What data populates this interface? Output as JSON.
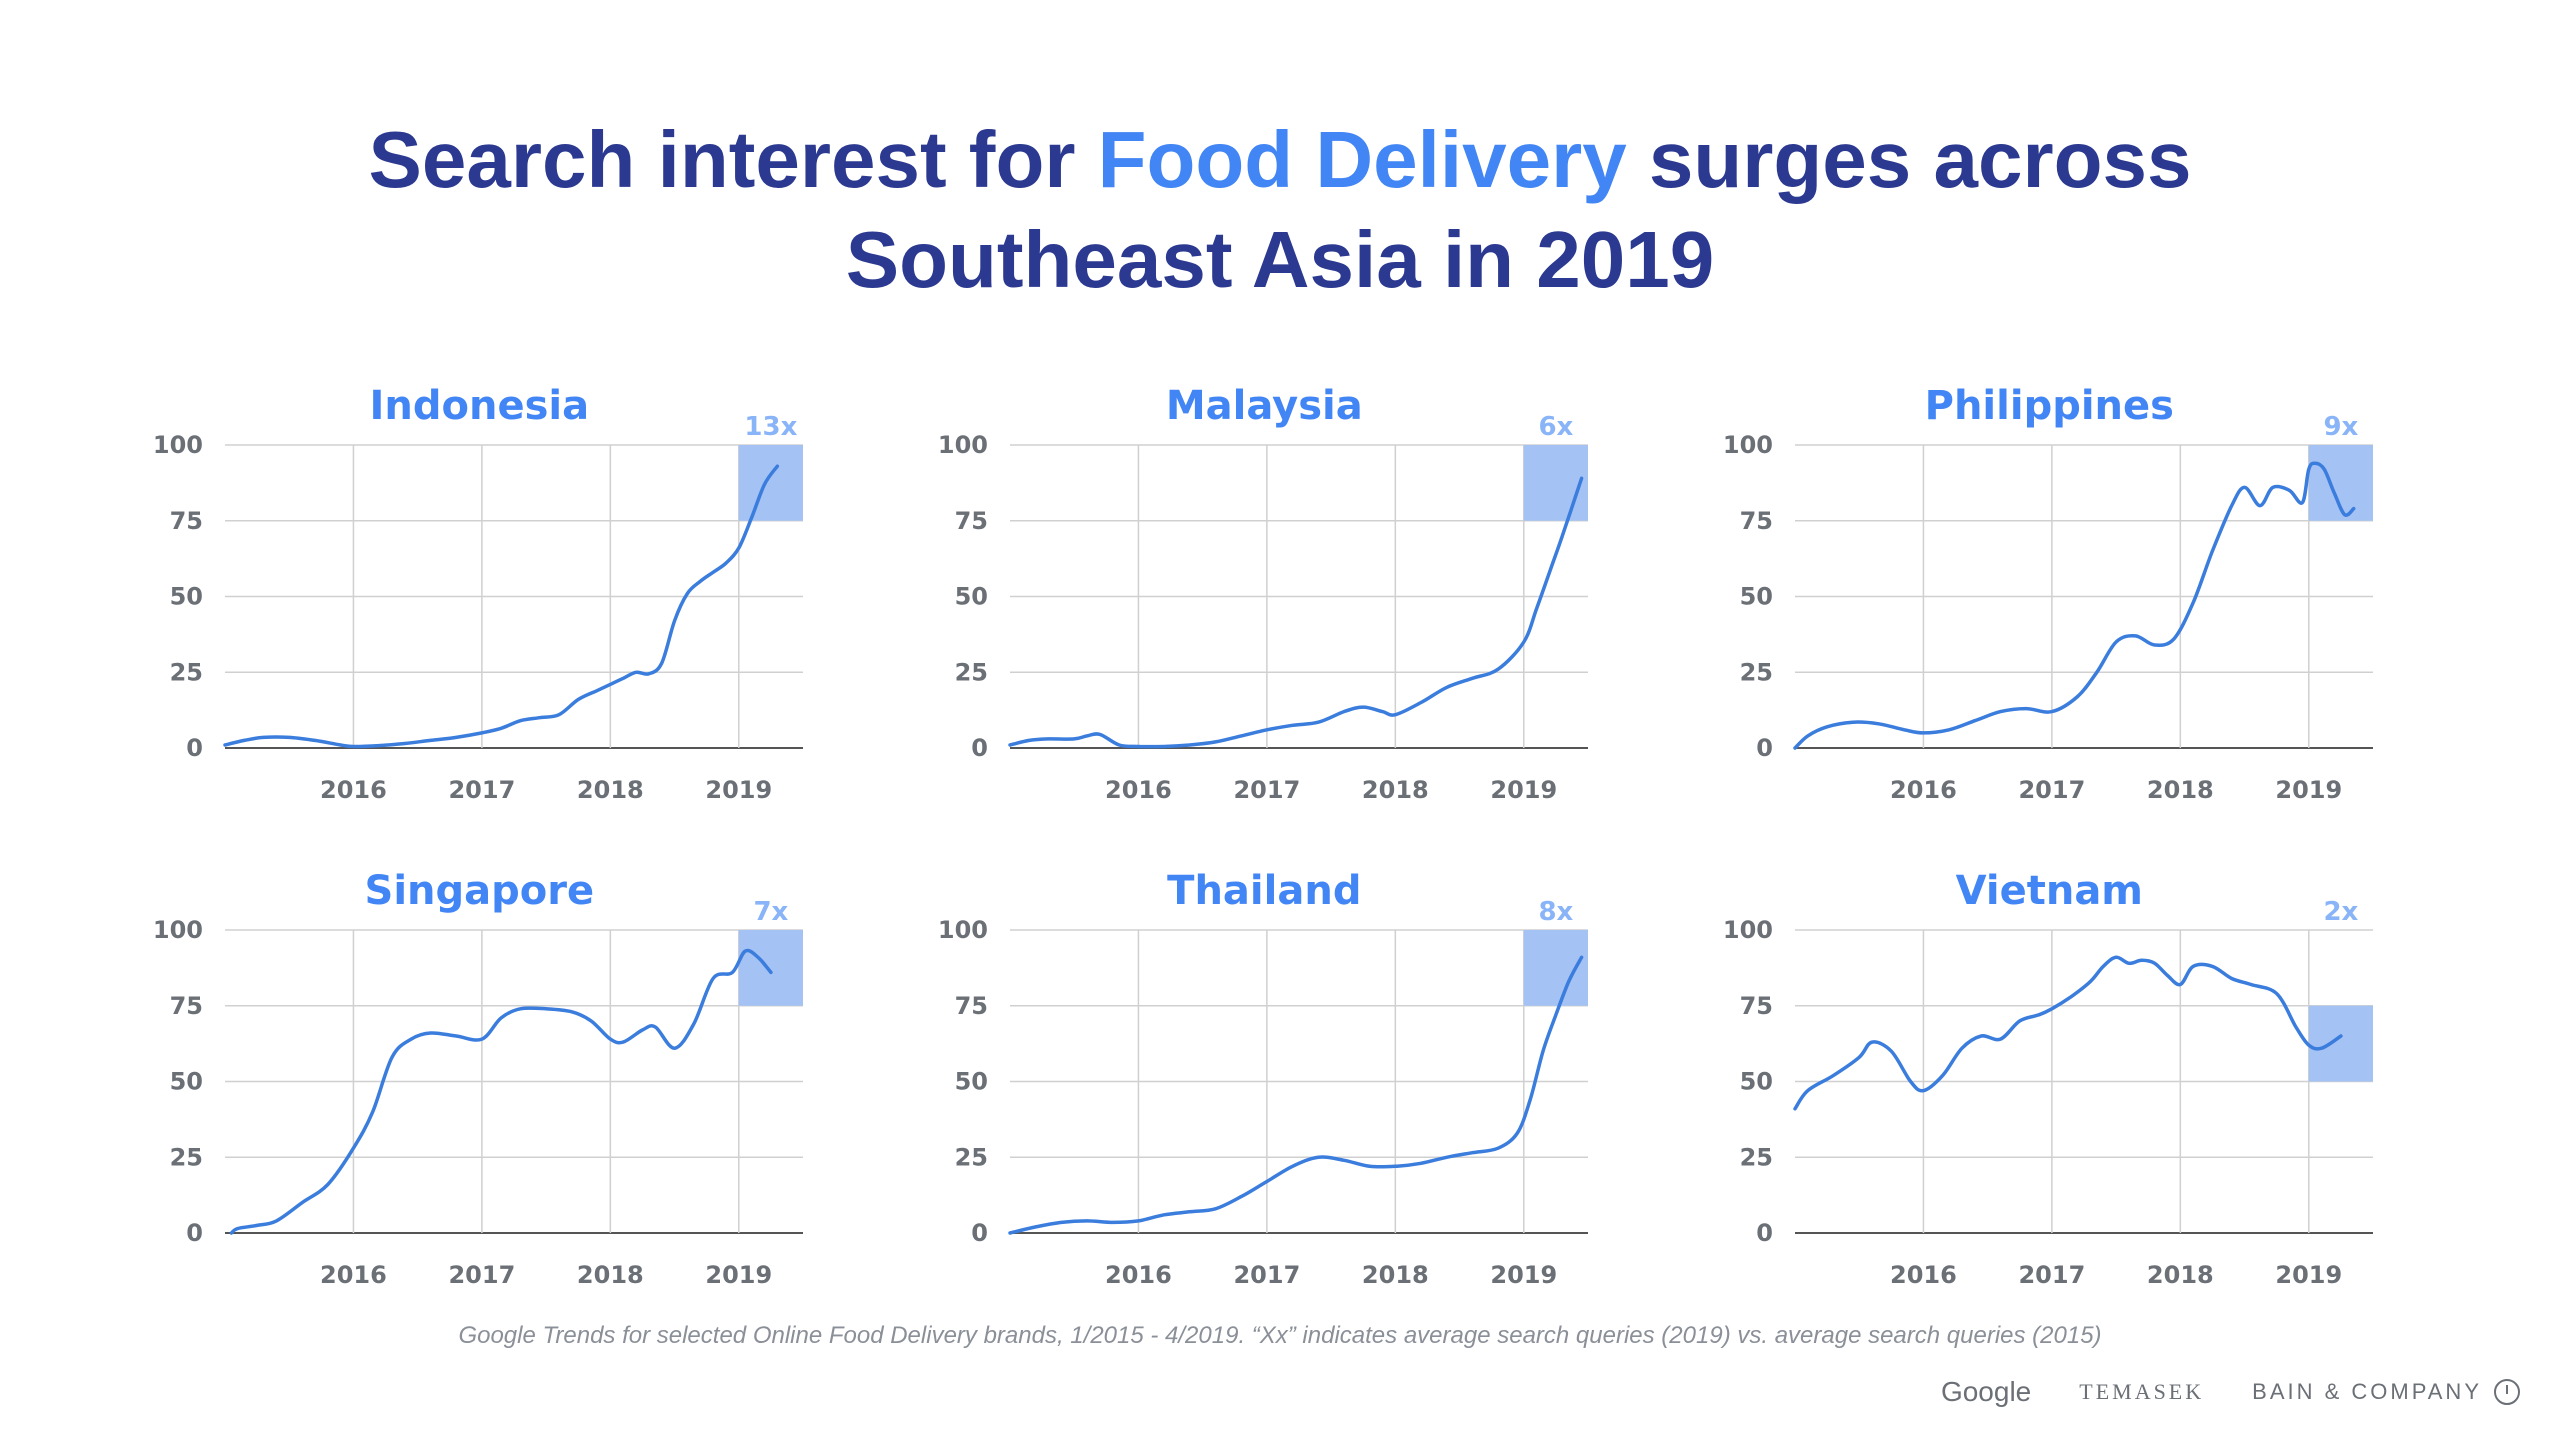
{
  "headline": {
    "part1": "Search interest for ",
    "highlight": "Food Delivery",
    "part2": " surges across",
    "line2": "Southeast Asia in 2019"
  },
  "colors": {
    "headline": "#2b3990",
    "accent": "#4285f4",
    "line": "#3b7ddd",
    "highlight_box": "#a4c2f4",
    "multiplier": "#8ab4f8",
    "grid": "#d0d0d0",
    "tick": "#6b6f76"
  },
  "chart_data": [
    {
      "type": "line",
      "title": "Indonesia",
      "multiplier": "13x",
      "ylim": [
        0,
        100
      ],
      "y_ticks": [
        0,
        25,
        50,
        75,
        100
      ],
      "x_range": [
        2015.0,
        2019.5
      ],
      "x_ticks": [
        2016,
        2017,
        2018,
        2019
      ],
      "highlight": {
        "x": [
          2019.0,
          2019.5
        ],
        "y": [
          75,
          100
        ]
      },
      "series": [
        {
          "x": [
            2015.0,
            2015.15,
            2015.3,
            2015.5,
            2015.7,
            2015.9,
            2016.0,
            2016.2,
            2016.4,
            2016.6,
            2016.8,
            2017.0,
            2017.15,
            2017.3,
            2017.45,
            2017.6,
            2017.75,
            2017.9,
            2018.0,
            2018.1,
            2018.2,
            2018.3,
            2018.4,
            2018.5,
            2018.6,
            2018.7,
            2018.8,
            2018.9,
            2019.0,
            2019.1,
            2019.2,
            2019.3
          ],
          "y": [
            1,
            2.5,
            3.5,
            3.5,
            2.5,
            1,
            0.5,
            0.8,
            1.5,
            2.5,
            3.5,
            5,
            6.5,
            9,
            10,
            11,
            16,
            19,
            21,
            23,
            25,
            24.5,
            28,
            42,
            51,
            55,
            58,
            61,
            66,
            76,
            87,
            93
          ]
        }
      ]
    },
    {
      "type": "line",
      "title": "Malaysia",
      "multiplier": "6x",
      "ylim": [
        0,
        100
      ],
      "y_ticks": [
        0,
        25,
        50,
        75,
        100
      ],
      "x_range": [
        2015.0,
        2019.5
      ],
      "x_ticks": [
        2016,
        2017,
        2018,
        2019
      ],
      "highlight": {
        "x": [
          2019.0,
          2019.5
        ],
        "y": [
          75,
          100
        ]
      },
      "series": [
        {
          "x": [
            2015.0,
            2015.15,
            2015.3,
            2015.5,
            2015.6,
            2015.7,
            2015.85,
            2016.0,
            2016.2,
            2016.4,
            2016.6,
            2016.8,
            2017.0,
            2017.2,
            2017.4,
            2017.6,
            2017.75,
            2017.9,
            2018.0,
            2018.2,
            2018.4,
            2018.6,
            2018.8,
            2019.0,
            2019.1,
            2019.2,
            2019.3,
            2019.45
          ],
          "y": [
            1,
            2.5,
            3,
            3,
            4,
            4.5,
            1,
            0.5,
            0.5,
            1,
            2,
            4,
            6,
            7.5,
            8.5,
            12,
            13.5,
            12,
            11,
            15,
            20,
            23,
            26,
            35,
            46,
            58,
            70,
            89
          ]
        }
      ]
    },
    {
      "type": "line",
      "title": "Philippines",
      "multiplier": "9x",
      "ylim": [
        0,
        100
      ],
      "y_ticks": [
        0,
        25,
        50,
        75,
        100
      ],
      "x_range": [
        2015.0,
        2019.5
      ],
      "x_ticks": [
        2016,
        2017,
        2018,
        2019
      ],
      "highlight": {
        "x": [
          2019.0,
          2019.5
        ],
        "y": [
          75,
          100
        ]
      },
      "series": [
        {
          "x": [
            2015.0,
            2015.1,
            2015.25,
            2015.45,
            2015.65,
            2015.85,
            2016.0,
            2016.2,
            2016.4,
            2016.6,
            2016.8,
            2017.0,
            2017.2,
            2017.35,
            2017.5,
            2017.65,
            2017.8,
            2017.95,
            2018.1,
            2018.25,
            2018.4,
            2018.5,
            2018.62,
            2018.72,
            2018.85,
            2018.95,
            2019.0,
            2019.05,
            2019.12,
            2019.2,
            2019.28,
            2019.35
          ],
          "y": [
            0,
            4,
            7,
            8.5,
            8,
            6,
            5,
            6,
            9,
            12,
            13,
            12,
            17,
            25,
            35,
            37,
            34,
            36,
            48,
            65,
            80,
            86,
            80,
            86,
            85,
            81,
            92,
            94,
            92,
            84,
            77,
            79
          ]
        }
      ]
    },
    {
      "type": "line",
      "title": "Singapore",
      "multiplier": "7x",
      "ylim": [
        0,
        100
      ],
      "y_ticks": [
        0,
        25,
        50,
        75,
        100
      ],
      "x_range": [
        2015.0,
        2019.5
      ],
      "x_ticks": [
        2016,
        2017,
        2018,
        2019
      ],
      "highlight": {
        "x": [
          2019.0,
          2019.5
        ],
        "y": [
          75,
          100
        ]
      },
      "series": [
        {
          "x": [
            2015.05,
            2015.1,
            2015.25,
            2015.4,
            2015.6,
            2015.8,
            2016.0,
            2016.15,
            2016.3,
            2016.45,
            2016.6,
            2016.8,
            2017.0,
            2017.15,
            2017.3,
            2017.5,
            2017.7,
            2017.85,
            2018.0,
            2018.1,
            2018.25,
            2018.35,
            2018.5,
            2018.65,
            2018.8,
            2018.95,
            2019.05,
            2019.15,
            2019.25
          ],
          "y": [
            0,
            1.5,
            2.5,
            4,
            10,
            16,
            28,
            40,
            58,
            64,
            66,
            65,
            64,
            71,
            74,
            74,
            73,
            70,
            64,
            63,
            67,
            68,
            61,
            69,
            84,
            86,
            93,
            91,
            86
          ]
        }
      ]
    },
    {
      "type": "line",
      "title": "Thailand",
      "multiplier": "8x",
      "ylim": [
        0,
        100
      ],
      "y_ticks": [
        0,
        25,
        50,
        75,
        100
      ],
      "x_range": [
        2015.0,
        2019.5
      ],
      "x_ticks": [
        2016,
        2017,
        2018,
        2019
      ],
      "highlight": {
        "x": [
          2019.0,
          2019.5
        ],
        "y": [
          75,
          100
        ]
      },
      "series": [
        {
          "x": [
            2015.0,
            2015.2,
            2015.4,
            2015.6,
            2015.8,
            2016.0,
            2016.2,
            2016.4,
            2016.6,
            2016.8,
            2017.0,
            2017.2,
            2017.4,
            2017.6,
            2017.8,
            2018.0,
            2018.2,
            2018.4,
            2018.6,
            2018.8,
            2018.95,
            2019.05,
            2019.15,
            2019.25,
            2019.35,
            2019.45
          ],
          "y": [
            0,
            2,
            3.5,
            4,
            3.5,
            4,
            6,
            7,
            8,
            12,
            17,
            22,
            25,
            24,
            22,
            22,
            23,
            25,
            26.5,
            28,
            33,
            44,
            60,
            72,
            83,
            91
          ]
        }
      ]
    },
    {
      "type": "line",
      "title": "Vietnam",
      "multiplier": "2x",
      "ylim": [
        0,
        100
      ],
      "y_ticks": [
        0,
        25,
        50,
        75,
        100
      ],
      "x_range": [
        2015.0,
        2019.5
      ],
      "x_ticks": [
        2016,
        2017,
        2018,
        2019
      ],
      "highlight": {
        "x": [
          2019.0,
          2019.5
        ],
        "y": [
          50,
          75
        ]
      },
      "series": [
        {
          "x": [
            2015.0,
            2015.1,
            2015.3,
            2015.5,
            2015.6,
            2015.75,
            2015.9,
            2016.0,
            2016.15,
            2016.3,
            2016.45,
            2016.6,
            2016.75,
            2016.9,
            2017.0,
            2017.15,
            2017.3,
            2017.4,
            2017.5,
            2017.6,
            2017.7,
            2017.8,
            2017.9,
            2018.0,
            2018.1,
            2018.25,
            2018.4,
            2018.55,
            2018.75,
            2018.9,
            2019.0,
            2019.1,
            2019.25
          ],
          "y": [
            41,
            47,
            52,
            58,
            63,
            60,
            50,
            47,
            52,
            61,
            65,
            64,
            70,
            72,
            74,
            78,
            83,
            88,
            91,
            89,
            90,
            89,
            85,
            82,
            88,
            88,
            84,
            82,
            79,
            68,
            62,
            61,
            65
          ]
        }
      ]
    }
  ],
  "footnote": "Google Trends for selected Online Food Delivery brands, 1/2015 - 4/2019. “Xx” indicates average search queries (2019) vs. average search queries (2015)",
  "logos": {
    "google": "Google",
    "temasek": "TEMASEK",
    "bain": "BAIN & COMPANY"
  }
}
